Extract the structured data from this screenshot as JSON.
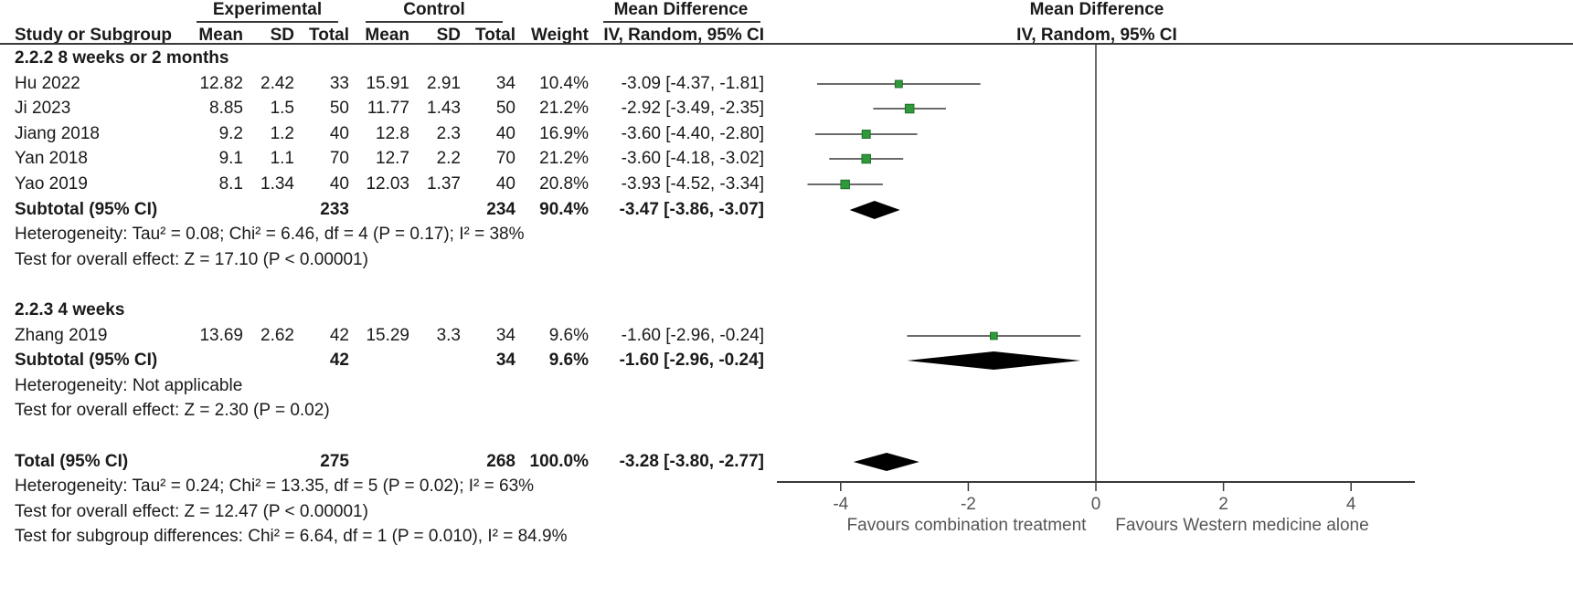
{
  "header": {
    "experimental": "Experimental",
    "control": "Control",
    "md_left": "Mean Difference",
    "md_right": "Mean Difference",
    "study": "Study or Subgroup",
    "mean": "Mean",
    "sd": "SD",
    "total": "Total",
    "weight": "Weight",
    "ci": "IV, Random, 95% CI",
    "ci_right": "IV, Random, 95% CI"
  },
  "chart_data": {
    "type": "forest",
    "axis": {
      "min": -5,
      "max": 5,
      "ticks": [
        -4,
        -2,
        0,
        2,
        4
      ],
      "tick_labels": [
        "-4",
        "-2",
        "0",
        "2",
        "4"
      ]
    },
    "favours_left": "Favours combination treatment",
    "favours_right": "Favours Western medicine alone",
    "rows": [
      {
        "kind": "subgroup",
        "label": "2.2.2 8 weeks or 2 months"
      },
      {
        "kind": "study",
        "label": "Hu 2022",
        "m1": "12.82",
        "sd1": "2.42",
        "n1": "33",
        "m2": "15.91",
        "sd2": "2.91",
        "n2": "34",
        "weight": "10.4%",
        "ci": "-3.09 [-4.37, -1.81]",
        "md": -3.09,
        "lo": -4.37,
        "hi": -1.81,
        "w": 10.4
      },
      {
        "kind": "study",
        "label": "Ji 2023",
        "m1": "8.85",
        "sd1": "1.5",
        "n1": "50",
        "m2": "11.77",
        "sd2": "1.43",
        "n2": "50",
        "weight": "21.2%",
        "ci": "-2.92 [-3.49, -2.35]",
        "md": -2.92,
        "lo": -3.49,
        "hi": -2.35,
        "w": 21.2
      },
      {
        "kind": "study",
        "label": "Jiang 2018",
        "m1": "9.2",
        "sd1": "1.2",
        "n1": "40",
        "m2": "12.8",
        "sd2": "2.3",
        "n2": "40",
        "weight": "16.9%",
        "ci": "-3.60 [-4.40, -2.80]",
        "md": -3.6,
        "lo": -4.4,
        "hi": -2.8,
        "w": 16.9
      },
      {
        "kind": "study",
        "label": "Yan 2018",
        "m1": "9.1",
        "sd1": "1.1",
        "n1": "70",
        "m2": "12.7",
        "sd2": "2.2",
        "n2": "70",
        "weight": "21.2%",
        "ci": "-3.60 [-4.18, -3.02]",
        "md": -3.6,
        "lo": -4.18,
        "hi": -3.02,
        "w": 21.2
      },
      {
        "kind": "study",
        "label": "Yao 2019",
        "m1": "8.1",
        "sd1": "1.34",
        "n1": "40",
        "m2": "12.03",
        "sd2": "1.37",
        "n2": "40",
        "weight": "20.8%",
        "ci": "-3.93 [-4.52, -3.34]",
        "md": -3.93,
        "lo": -4.52,
        "hi": -3.34,
        "w": 20.8
      },
      {
        "kind": "subtotal",
        "label": "Subtotal (95% CI)",
        "n1": "233",
        "n2": "234",
        "weight": "90.4%",
        "ci": "-3.47 [-3.86, -3.07]",
        "md": -3.47,
        "lo": -3.86,
        "hi": -3.07
      },
      {
        "kind": "note",
        "label": "Heterogeneity: Tau² = 0.08; Chi² = 6.46, df = 4 (P = 0.17); I² = 38%"
      },
      {
        "kind": "note",
        "label": "Test for overall effect: Z = 17.10 (P < 0.00001)"
      },
      {
        "kind": "blank"
      },
      {
        "kind": "subgroup",
        "label": "2.2.3 4 weeks"
      },
      {
        "kind": "study",
        "label": "Zhang 2019",
        "m1": "13.69",
        "sd1": "2.62",
        "n1": "42",
        "m2": "15.29",
        "sd2": "3.3",
        "n2": "34",
        "weight": "9.6%",
        "ci": "-1.60 [-2.96, -0.24]",
        "md": -1.6,
        "lo": -2.96,
        "hi": -0.24,
        "w": 9.6
      },
      {
        "kind": "subtotal",
        "label": "Subtotal (95% CI)",
        "n1": "42",
        "n2": "34",
        "weight": "9.6%",
        "ci": "-1.60 [-2.96, -0.24]",
        "md": -1.6,
        "lo": -2.96,
        "hi": -0.24
      },
      {
        "kind": "note",
        "label": "Heterogeneity: Not applicable"
      },
      {
        "kind": "note",
        "label": "Test for overall effect: Z = 2.30 (P = 0.02)"
      },
      {
        "kind": "blank"
      },
      {
        "kind": "subtotal",
        "label": "Total (95% CI)",
        "n1": "275",
        "n2": "268",
        "weight": "100.0%",
        "ci": "-3.28 [-3.80, -2.77]",
        "md": -3.28,
        "lo": -3.8,
        "hi": -2.77
      },
      {
        "kind": "note",
        "label": "Heterogeneity: Tau² = 0.24; Chi² = 13.35, df = 5 (P = 0.02); I² = 63%"
      },
      {
        "kind": "note",
        "label": "Test for overall effect: Z = 12.47 (P < 0.00001)"
      },
      {
        "kind": "note",
        "label": "Test for subgroup differences: Chi² = 6.64, df = 1 (P = 0.010), I² = 84.9%"
      }
    ],
    "colors": {
      "square": "#2e9a3a",
      "line": "#3a3a3a",
      "ci_bar": "#bdbdbd",
      "diamond": "#000000"
    }
  }
}
